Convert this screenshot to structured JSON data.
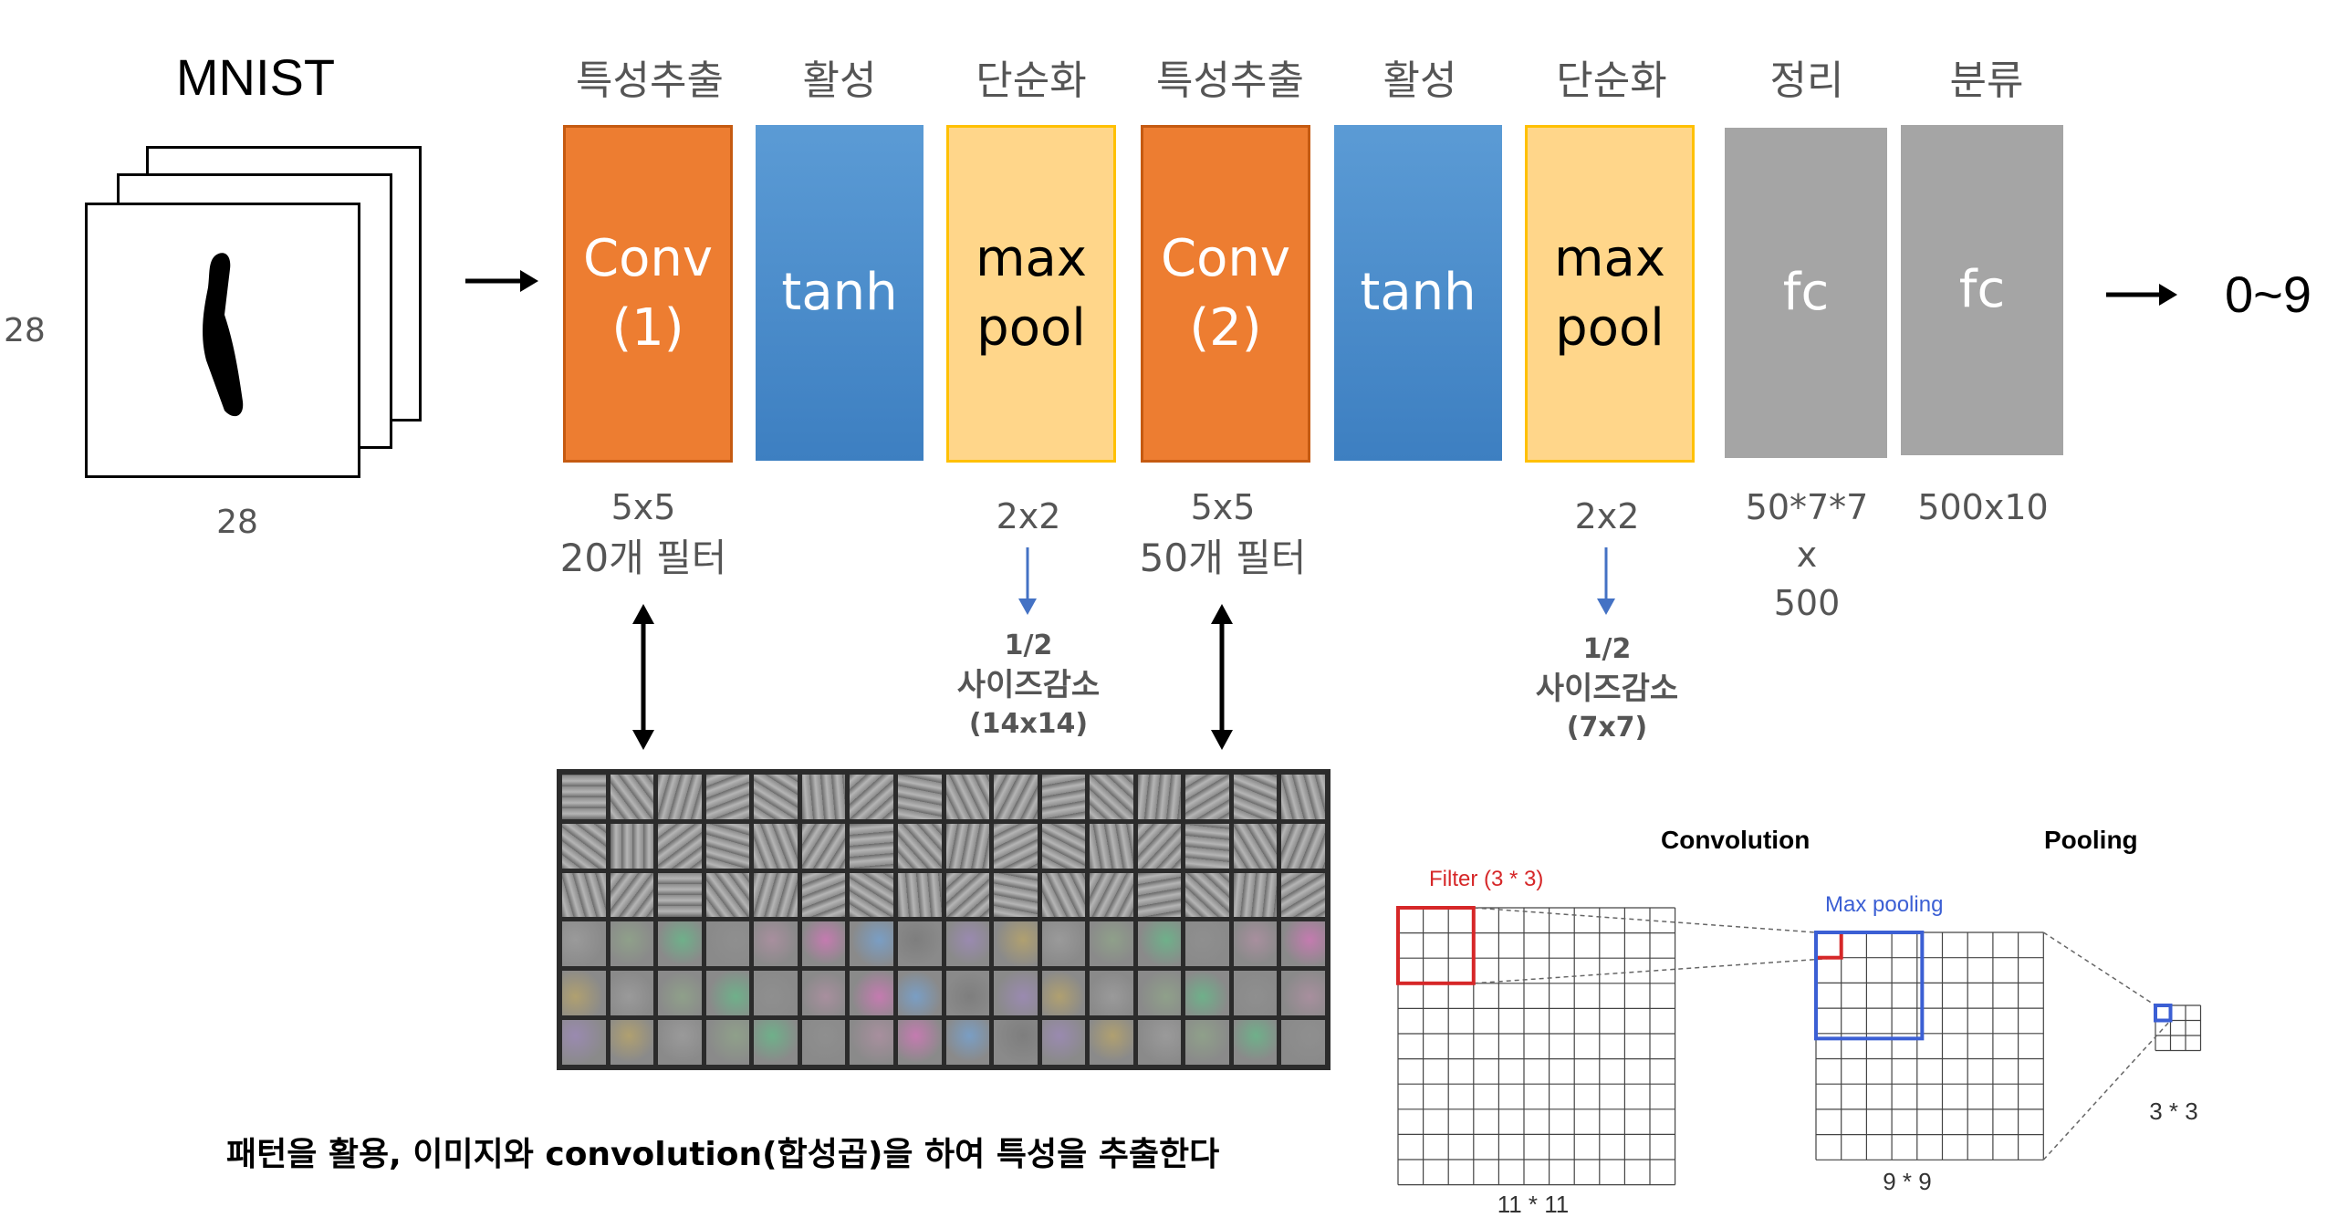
{
  "input": {
    "title": "MNIST",
    "height_label": "28",
    "width_label": "28"
  },
  "stages": [
    {
      "header": "특성추출",
      "line1": "Conv",
      "line2": "(1)",
      "color": "#ed7d31"
    },
    {
      "header": "활성",
      "line1": "tanh",
      "line2": "",
      "color": "#5b9bd5"
    },
    {
      "header": "단순화",
      "line1": "max",
      "line2": "pool",
      "color": "#ffd68a"
    },
    {
      "header": "특성추출",
      "line1": "Conv",
      "line2": "(2)",
      "color": "#ed7d31"
    },
    {
      "header": "활성",
      "line1": "tanh",
      "line2": "",
      "color": "#5b9bd5"
    },
    {
      "header": "단순화",
      "line1": "max",
      "line2": "pool",
      "color": "#ffd68a"
    },
    {
      "header": "정리",
      "line1": "fc",
      "line2": "",
      "color": "#a5a5a5"
    },
    {
      "header": "분류",
      "line1": "fc",
      "line2": "",
      "color": "#a5a5a5"
    }
  ],
  "params": {
    "conv1": {
      "size": "5x5",
      "filters": "20개 필터"
    },
    "pool1": {
      "size": "2x2",
      "note1": "1/2",
      "note2": "사이즈감소",
      "note3": "(14x14)"
    },
    "conv2": {
      "size": "5x5",
      "filters": "50개 필터"
    },
    "pool2": {
      "size": "2x2",
      "note1": "1/2",
      "note2": "사이즈감소",
      "note3": "(7x7)"
    },
    "fc1": {
      "line1": "50*7*7",
      "line2": "x",
      "line3": "500"
    },
    "fc2": {
      "line1": "500x10"
    }
  },
  "output": {
    "label": "0~9"
  },
  "caption": "패턴을 활용, 이미지와 convolution(합성곱)을 하여 특성을 추출한다",
  "inset": {
    "convolution_title": "Convolution",
    "pooling_title": "Pooling",
    "filter_label": "Filter (3 * 3)",
    "maxpool_label": "Max pooling",
    "grid1_label": "11 * 11",
    "grid2_label": "9 * 9",
    "grid3_label": "3 * 3",
    "filter_color": "#d62728",
    "pool_color": "#3b5fd4"
  }
}
